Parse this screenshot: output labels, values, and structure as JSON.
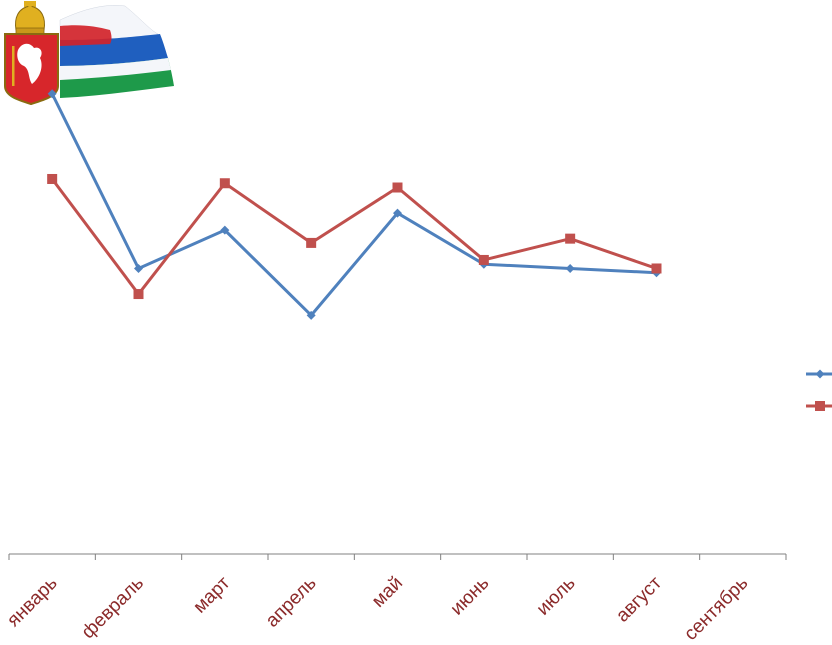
{
  "colors": {
    "series_1": "#4F81BD",
    "series_2": "#C0504D",
    "axis": "#808080",
    "tick_label": "#8B2A2A",
    "flag_white": "#F4F6FA",
    "flag_blue": "#1F5FBF",
    "flag_red": "#D1232A",
    "flag_green": "#1E9A4A",
    "shield_red": "#D7262B",
    "gold": "#E0B020"
  },
  "emblem": {
    "icon": "sverdlovsk-oblast-coat-of-arms-with-flag"
  },
  "chart_data": {
    "type": "line",
    "categories": [
      "январь",
      "февраль",
      "март",
      "апрель",
      "май",
      "июнь",
      "июль",
      "август",
      "сентябрь"
    ],
    "series": [
      {
        "values": [
          108,
          67,
          76,
          56,
          80,
          68,
          67,
          66,
          null
        ],
        "marker": "diamond",
        "color": "#4F81BD"
      },
      {
        "values": [
          88,
          61,
          87,
          73,
          86,
          69,
          74,
          67,
          null
        ],
        "marker": "square",
        "color": "#C0504D"
      }
    ],
    "ylim": [
      0,
      130
    ],
    "grid": false,
    "legend_position": "right"
  }
}
